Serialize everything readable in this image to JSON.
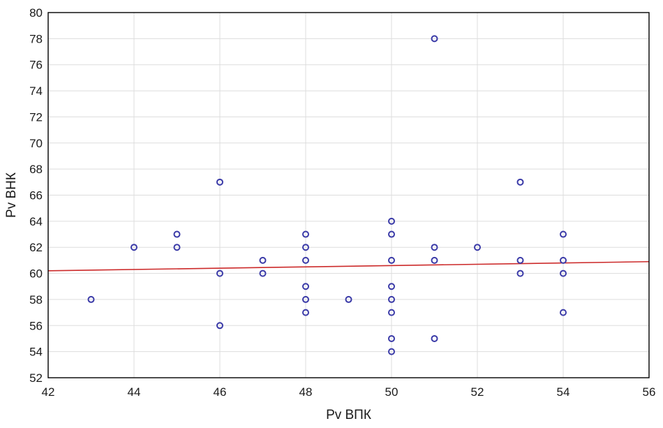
{
  "chart_data": {
    "type": "scatter",
    "xlabel": "Pv ВПК",
    "ylabel": "Pv ВНК",
    "xlim": [
      42,
      56
    ],
    "ylim": [
      52,
      80
    ],
    "x_ticks": [
      "42",
      "44",
      "46",
      "48",
      "50",
      "52",
      "54",
      "56"
    ],
    "y_ticks": [
      "52",
      "54",
      "56",
      "58",
      "60",
      "62",
      "64",
      "66",
      "68",
      "70",
      "72",
      "74",
      "76",
      "78",
      "80"
    ],
    "grid": true,
    "marker": "open-circle",
    "colors": {
      "points": "#3b3ba8",
      "fit_line": "#cc2a2a",
      "grid": "#dddddd",
      "frame": "#000000"
    },
    "points": [
      {
        "x": 43,
        "y": 58
      },
      {
        "x": 44,
        "y": 62
      },
      {
        "x": 45,
        "y": 63
      },
      {
        "x": 45,
        "y": 62
      },
      {
        "x": 46,
        "y": 67
      },
      {
        "x": 46,
        "y": 60
      },
      {
        "x": 46,
        "y": 56
      },
      {
        "x": 47,
        "y": 61
      },
      {
        "x": 47,
        "y": 60
      },
      {
        "x": 48,
        "y": 63
      },
      {
        "x": 48,
        "y": 62
      },
      {
        "x": 48,
        "y": 61
      },
      {
        "x": 48,
        "y": 59
      },
      {
        "x": 48,
        "y": 58
      },
      {
        "x": 48,
        "y": 57
      },
      {
        "x": 49,
        "y": 58
      },
      {
        "x": 50,
        "y": 64
      },
      {
        "x": 50,
        "y": 63
      },
      {
        "x": 50,
        "y": 61
      },
      {
        "x": 50,
        "y": 59
      },
      {
        "x": 50,
        "y": 58
      },
      {
        "x": 50,
        "y": 57
      },
      {
        "x": 50,
        "y": 55
      },
      {
        "x": 50,
        "y": 54
      },
      {
        "x": 51,
        "y": 78
      },
      {
        "x": 51,
        "y": 62
      },
      {
        "x": 51,
        "y": 61
      },
      {
        "x": 51,
        "y": 55
      },
      {
        "x": 52,
        "y": 62
      },
      {
        "x": 53,
        "y": 67
      },
      {
        "x": 53,
        "y": 61
      },
      {
        "x": 53,
        "y": 60
      },
      {
        "x": 54,
        "y": 63
      },
      {
        "x": 54,
        "y": 61
      },
      {
        "x": 54,
        "y": 60
      },
      {
        "x": 54,
        "y": 57
      }
    ],
    "fit_line": {
      "x": [
        42,
        56
      ],
      "y": [
        60.2,
        60.9
      ]
    }
  }
}
